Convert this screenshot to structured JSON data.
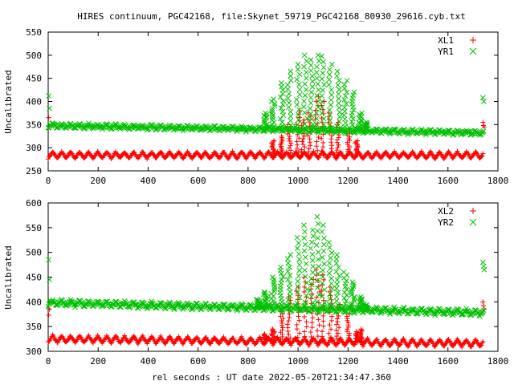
{
  "title": "HIRES continuum, PGC42168, file:Skynet_59719_PGC42168_80930_29616.cyb.txt",
  "xlabel": "rel seconds : UT date 2022-05-20T21:34:47.360",
  "chart_data": [
    {
      "type": "scatter",
      "ylabel": "Uncalibrated",
      "xlim": [
        0,
        1800
      ],
      "ylim": [
        250,
        550
      ],
      "xticks": [
        0,
        200,
        400,
        600,
        800,
        1000,
        1200,
        1400,
        1600,
        1800
      ],
      "yticks": [
        250,
        300,
        350,
        400,
        450,
        500,
        550
      ],
      "legend_position": "top-right",
      "series": [
        {
          "name": "XL1",
          "marker": "+",
          "color": "#ff0000",
          "points": [
            [
              2,
              365
            ],
            [
              5,
              345
            ],
            [
              1740,
              355
            ],
            [
              1742,
              348
            ],
            [
              1745,
              345
            ]
          ],
          "baseline": {
            "x_start": 0,
            "x_end": 1740,
            "level": 284,
            "ripple_amplitude": 7,
            "ripple_period": 36
          },
          "bursts": [
            {
              "x": 900,
              "peak": 315
            },
            {
              "x": 935,
              "peak": 325
            },
            {
              "x": 965,
              "peak": 350
            },
            {
              "x": 1000,
              "peak": 380
            },
            {
              "x": 1020,
              "peak": 360
            },
            {
              "x": 1045,
              "peak": 375
            },
            {
              "x": 1075,
              "peak": 410
            },
            {
              "x": 1100,
              "peak": 400
            },
            {
              "x": 1130,
              "peak": 375
            },
            {
              "x": 1160,
              "peak": 355
            },
            {
              "x": 1200,
              "peak": 335
            },
            {
              "x": 1235,
              "peak": 315
            }
          ]
        },
        {
          "name": "YR1",
          "marker": "x",
          "color": "#00c000",
          "points": [
            [
              2,
              412
            ],
            [
              5,
              385
            ],
            [
              1740,
              408
            ],
            [
              1743,
              400
            ]
          ],
          "baseline": {
            "x_start": 0,
            "x_end": 1745,
            "level_start": 348,
            "level_end": 332,
            "ripple_amplitude": 5,
            "ripple_period": 36
          },
          "bursts": [
            {
              "x": 870,
              "peak": 375
            },
            {
              "x": 900,
              "peak": 405
            },
            {
              "x": 935,
              "peak": 440
            },
            {
              "x": 965,
              "peak": 465
            },
            {
              "x": 1000,
              "peak": 480
            },
            {
              "x": 1030,
              "peak": 500
            },
            {
              "x": 1055,
              "peak": 490
            },
            {
              "x": 1080,
              "peak": 500
            },
            {
              "x": 1100,
              "peak": 498
            },
            {
              "x": 1130,
              "peak": 480
            },
            {
              "x": 1160,
              "peak": 465
            },
            {
              "x": 1190,
              "peak": 445
            },
            {
              "x": 1220,
              "peak": 420
            },
            {
              "x": 1250,
              "peak": 375
            },
            {
              "x": 1270,
              "peak": 355
            }
          ]
        }
      ]
    },
    {
      "type": "scatter",
      "ylabel": "Uncalibrated",
      "xlim": [
        0,
        1800
      ],
      "ylim": [
        300,
        600
      ],
      "xticks": [
        0,
        200,
        400,
        600,
        800,
        1000,
        1200,
        1400,
        1600,
        1800
      ],
      "yticks": [
        300,
        350,
        400,
        450,
        500,
        550,
        600
      ],
      "legend_position": "top-right",
      "series": [
        {
          "name": "XL2",
          "marker": "+",
          "color": "#ff0000",
          "points": [
            [
              2,
              373
            ],
            [
              5,
              385
            ],
            [
              1740,
              400
            ],
            [
              1742,
              392
            ],
            [
              1745,
              385
            ]
          ],
          "baseline": {
            "x_start": 0,
            "x_end": 1740,
            "level_start": 325,
            "level_end": 316,
            "ripple_amplitude": 7,
            "ripple_period": 36
          },
          "bursts": [
            {
              "x": 870,
              "peak": 335
            },
            {
              "x": 900,
              "peak": 345
            },
            {
              "x": 935,
              "peak": 380
            },
            {
              "x": 965,
              "peak": 410
            },
            {
              "x": 1000,
              "peak": 430
            },
            {
              "x": 1030,
              "peak": 450
            },
            {
              "x": 1055,
              "peak": 445
            },
            {
              "x": 1080,
              "peak": 465
            },
            {
              "x": 1100,
              "peak": 455
            },
            {
              "x": 1130,
              "peak": 430
            },
            {
              "x": 1160,
              "peak": 395
            },
            {
              "x": 1200,
              "peak": 375
            },
            {
              "x": 1235,
              "peak": 340
            },
            {
              "x": 1250,
              "peak": 345
            }
          ]
        },
        {
          "name": "YR2",
          "marker": "x",
          "color": "#00c000",
          "points": [
            [
              2,
              485
            ],
            [
              5,
              445
            ],
            [
              1740,
              480
            ],
            [
              1743,
              472
            ],
            [
              1745,
              465
            ]
          ],
          "baseline": {
            "x_start": 0,
            "x_end": 1745,
            "level_start": 398,
            "level_end": 378,
            "ripple_amplitude": 6,
            "ripple_period": 36
          },
          "bursts": [
            {
              "x": 840,
              "peak": 405
            },
            {
              "x": 870,
              "peak": 420
            },
            {
              "x": 900,
              "peak": 450
            },
            {
              "x": 935,
              "peak": 470
            },
            {
              "x": 965,
              "peak": 495
            },
            {
              "x": 1000,
              "peak": 530
            },
            {
              "x": 1030,
              "peak": 555
            },
            {
              "x": 1055,
              "peak": 545
            },
            {
              "x": 1080,
              "peak": 572
            },
            {
              "x": 1100,
              "peak": 555
            },
            {
              "x": 1130,
              "peak": 520
            },
            {
              "x": 1160,
              "peak": 495
            },
            {
              "x": 1190,
              "peak": 460
            },
            {
              "x": 1220,
              "peak": 440
            },
            {
              "x": 1250,
              "peak": 410
            },
            {
              "x": 1270,
              "peak": 395
            }
          ]
        }
      ]
    }
  ]
}
